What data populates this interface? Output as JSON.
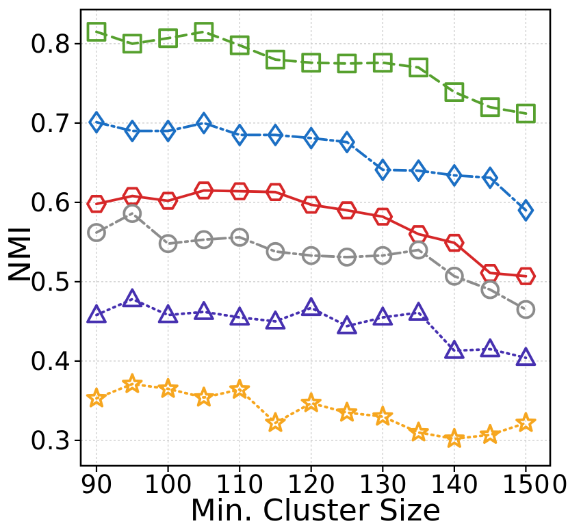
{
  "chart_data": {
    "type": "line",
    "title": "",
    "xlabel": "Min. Cluster Size",
    "ylabel": "NMI",
    "clipped_right_tick_text": "0",
    "grid": true,
    "legend": "none",
    "x": [
      90,
      95,
      100,
      105,
      110,
      115,
      120,
      125,
      130,
      135,
      140,
      145,
      150
    ],
    "xticks": [
      90,
      100,
      110,
      120,
      130,
      140,
      150
    ],
    "yticks": [
      0.3,
      0.4,
      0.5,
      0.6,
      0.7,
      0.8
    ],
    "xlim": [
      87.8,
      153.4
    ],
    "ylim": [
      0.268,
      0.843
    ],
    "colors": {
      "green": "#56a02e",
      "blue": "#1b6fc4",
      "red": "#d62728",
      "gray": "#8c8c8c",
      "purple": "#4630b0",
      "orange": "#f6a61f",
      "grid": "#c8c8c8",
      "frame": "#000000"
    },
    "series": [
      {
        "name": "green-squares",
        "marker": "square",
        "color": "#56a02e",
        "line_style": "dashed",
        "values": [
          0.815,
          0.8,
          0.807,
          0.815,
          0.798,
          0.78,
          0.776,
          0.775,
          0.776,
          0.77,
          0.739,
          0.72,
          0.712
        ]
      },
      {
        "name": "blue-diamonds",
        "marker": "diamond",
        "color": "#1b6fc4",
        "line_style": "dashdot",
        "values": [
          0.701,
          0.69,
          0.69,
          0.7,
          0.685,
          0.685,
          0.681,
          0.676,
          0.641,
          0.64,
          0.634,
          0.631,
          0.59
        ]
      },
      {
        "name": "red-hexagons",
        "marker": "hexagon",
        "color": "#d62728",
        "line_style": "solid",
        "values": [
          0.598,
          0.608,
          0.602,
          0.615,
          0.614,
          0.613,
          0.597,
          0.59,
          0.582,
          0.56,
          0.549,
          0.511,
          0.507
        ]
      },
      {
        "name": "gray-circles",
        "marker": "circle",
        "color": "#8c8c8c",
        "line_style": "dashdot",
        "values": [
          0.562,
          0.586,
          0.548,
          0.553,
          0.556,
          0.538,
          0.533,
          0.531,
          0.533,
          0.54,
          0.507,
          0.49,
          0.465
        ]
      },
      {
        "name": "purple-triangles",
        "marker": "triangle",
        "color": "#4630b0",
        "line_style": "dotted",
        "values": [
          0.458,
          0.478,
          0.458,
          0.462,
          0.455,
          0.45,
          0.467,
          0.444,
          0.455,
          0.461,
          0.413,
          0.415,
          0.404
        ]
      },
      {
        "name": "orange-stars",
        "marker": "star",
        "color": "#f6a61f",
        "line_style": "dotted",
        "values": [
          0.353,
          0.371,
          0.365,
          0.354,
          0.364,
          0.322,
          0.347,
          0.335,
          0.33,
          0.31,
          0.302,
          0.307,
          0.322
        ]
      }
    ]
  }
}
